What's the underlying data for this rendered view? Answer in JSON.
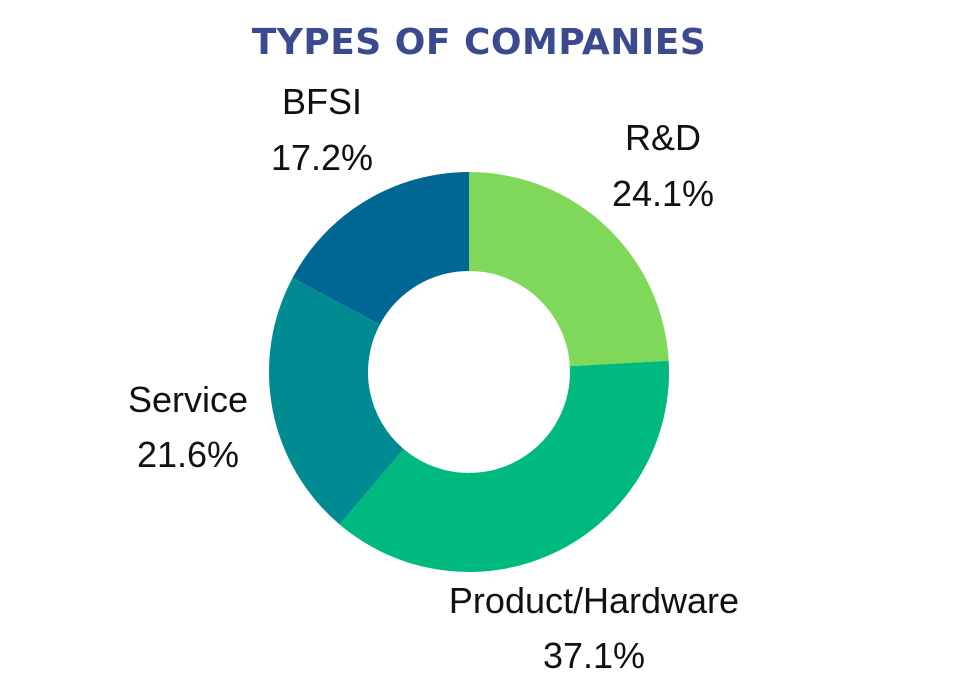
{
  "chart_data": {
    "type": "pie",
    "donut": true,
    "title": "TYPES OF COMPANIES",
    "title_color": "#3b4a8f",
    "start_angle_deg": 0,
    "direction": "clockwise",
    "slices": [
      {
        "label": "R&D",
        "value": 24.1,
        "value_label": "24.1%",
        "color": "#7fd85a"
      },
      {
        "label": "Product/Hardware",
        "value": 37.1,
        "value_label": "37.1%",
        "color": "#00b97e"
      },
      {
        "label": "Service",
        "value": 21.6,
        "value_label": "21.6%",
        "color": "#008b93"
      },
      {
        "label": "BFSI",
        "value": 17.2,
        "value_label": "17.2%",
        "color": "#006693"
      }
    ]
  }
}
